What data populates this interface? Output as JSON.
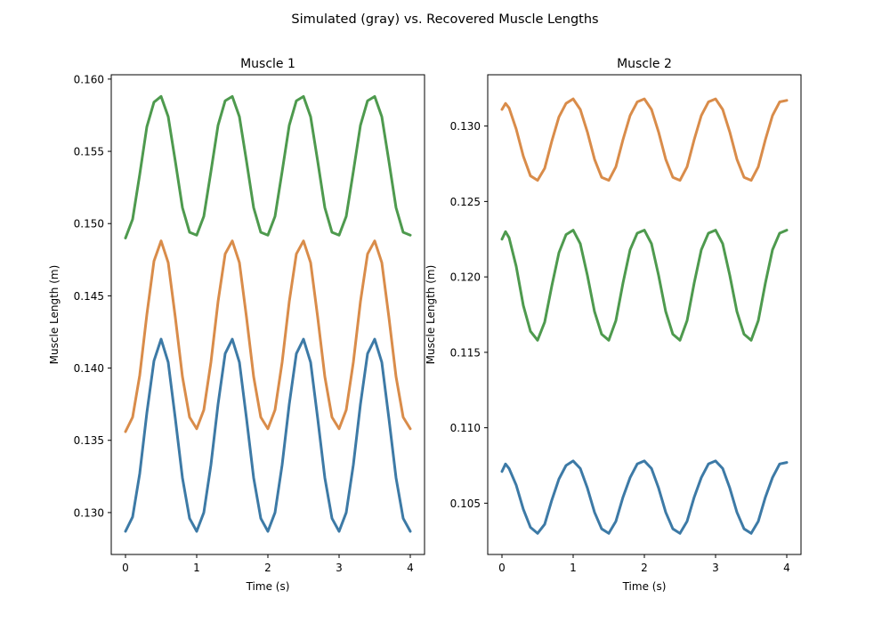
{
  "figure": {
    "suptitle": "Simulated (gray) vs. Recovered Muscle Lengths"
  },
  "chart_data": [
    {
      "type": "line",
      "title": "Muscle 1",
      "xlabel": "Time (s)",
      "ylabel": "Muscle Length (m)",
      "xlim": [
        -0.2,
        4.2
      ],
      "ylim": [
        0.1271,
        0.1603
      ],
      "xticks": [
        0,
        1,
        2,
        3,
        4
      ],
      "xtick_labels": [
        "0",
        "1",
        "2",
        "3",
        "4"
      ],
      "yticks": [
        0.13,
        0.135,
        0.14,
        0.145,
        0.15,
        0.155,
        0.16
      ],
      "ytick_labels": [
        "0.130",
        "0.135",
        "0.140",
        "0.145",
        "0.150",
        "0.155",
        "0.160"
      ],
      "grid": false,
      "series": [
        {
          "color": "#3d7aa6",
          "x": [
            0,
            0.1,
            0.2,
            0.3,
            0.4,
            0.5,
            0.6,
            0.7,
            0.8,
            0.9,
            1.0,
            1.1,
            1.2,
            1.3,
            1.4,
            1.5,
            1.6,
            1.7,
            1.8,
            1.9,
            2.0,
            2.1,
            2.2,
            2.3,
            2.4,
            2.5,
            2.6,
            2.7,
            2.8,
            2.9,
            3.0,
            3.1,
            3.2,
            3.3,
            3.4,
            3.5,
            3.6,
            3.7,
            3.8,
            3.9,
            4.0
          ],
          "y": [
            0.1287,
            0.1297,
            0.1327,
            0.1369,
            0.1405,
            0.142,
            0.1404,
            0.1365,
            0.1324,
            0.1296,
            0.1287,
            0.13,
            0.1333,
            0.1375,
            0.141,
            0.142,
            0.1404,
            0.1365,
            0.1324,
            0.1296,
            0.1287,
            0.13,
            0.1333,
            0.1375,
            0.141,
            0.142,
            0.1404,
            0.1365,
            0.1324,
            0.1296,
            0.1287,
            0.13,
            0.1333,
            0.1375,
            0.141,
            0.142,
            0.1404,
            0.1365,
            0.1324,
            0.1296,
            0.1287
          ]
        },
        {
          "color": "#d98c4a",
          "x": [
            0,
            0.1,
            0.2,
            0.3,
            0.4,
            0.5,
            0.6,
            0.7,
            0.8,
            0.9,
            1.0,
            1.1,
            1.2,
            1.3,
            1.4,
            1.5,
            1.6,
            1.7,
            1.8,
            1.9,
            2.0,
            2.1,
            2.2,
            2.3,
            2.4,
            2.5,
            2.6,
            2.7,
            2.8,
            2.9,
            3.0,
            3.1,
            3.2,
            3.3,
            3.4,
            3.5,
            3.6,
            3.7,
            3.8,
            3.9,
            4.0
          ],
          "y": [
            0.1356,
            0.1366,
            0.1395,
            0.1437,
            0.1474,
            0.1488,
            0.1473,
            0.1435,
            0.1394,
            0.1366,
            0.1358,
            0.1371,
            0.1404,
            0.1446,
            0.1479,
            0.1488,
            0.1473,
            0.1435,
            0.1394,
            0.1366,
            0.1358,
            0.1371,
            0.1404,
            0.1446,
            0.1479,
            0.1488,
            0.1473,
            0.1435,
            0.1394,
            0.1366,
            0.1358,
            0.1371,
            0.1404,
            0.1446,
            0.1479,
            0.1488,
            0.1473,
            0.1435,
            0.1394,
            0.1366,
            0.1358
          ]
        },
        {
          "color": "#4e9a4e",
          "x": [
            0,
            0.1,
            0.2,
            0.3,
            0.4,
            0.5,
            0.6,
            0.7,
            0.8,
            0.9,
            1.0,
            1.1,
            1.2,
            1.3,
            1.4,
            1.5,
            1.6,
            1.7,
            1.8,
            1.9,
            2.0,
            2.1,
            2.2,
            2.3,
            2.4,
            2.5,
            2.6,
            2.7,
            2.8,
            2.9,
            3.0,
            3.1,
            3.2,
            3.3,
            3.4,
            3.5,
            3.6,
            3.7,
            3.8,
            3.9,
            4.0
          ],
          "y": [
            0.149,
            0.1503,
            0.1534,
            0.1567,
            0.1584,
            0.1588,
            0.1574,
            0.1543,
            0.1511,
            0.1494,
            0.1492,
            0.1505,
            0.1536,
            0.1568,
            0.1585,
            0.1588,
            0.1574,
            0.1543,
            0.1511,
            0.1494,
            0.1492,
            0.1505,
            0.1536,
            0.1568,
            0.1585,
            0.1588,
            0.1574,
            0.1543,
            0.1511,
            0.1494,
            0.1492,
            0.1505,
            0.1536,
            0.1568,
            0.1585,
            0.1588,
            0.1574,
            0.1543,
            0.1511,
            0.1494,
            0.1492
          ]
        }
      ]
    },
    {
      "type": "line",
      "title": "Muscle 2",
      "xlabel": "Time (s)",
      "ylabel": "Muscle Length (m)",
      "xlim": [
        -0.2,
        4.2
      ],
      "ylim": [
        0.1016,
        0.1334
      ],
      "xticks": [
        0,
        1,
        2,
        3,
        4
      ],
      "xtick_labels": [
        "0",
        "1",
        "2",
        "3",
        "4"
      ],
      "yticks": [
        0.105,
        0.11,
        0.115,
        0.12,
        0.125,
        0.13
      ],
      "ytick_labels": [
        "0.105",
        "0.110",
        "0.115",
        "0.120",
        "0.125",
        "0.130"
      ],
      "grid": false,
      "series": [
        {
          "color": "#3d7aa6",
          "x": [
            0,
            0.05,
            0.1,
            0.2,
            0.3,
            0.4,
            0.5,
            0.6,
            0.7,
            0.8,
            0.9,
            1.0,
            1.1,
            1.2,
            1.3,
            1.4,
            1.5,
            1.6,
            1.7,
            1.8,
            1.9,
            2.0,
            2.1,
            2.2,
            2.3,
            2.4,
            2.5,
            2.6,
            2.7,
            2.8,
            2.9,
            3.0,
            3.1,
            3.2,
            3.3,
            3.4,
            3.5,
            3.6,
            3.7,
            3.8,
            3.9,
            4.0
          ],
          "y": [
            0.1071,
            0.1076,
            0.1073,
            0.1062,
            0.1046,
            0.1034,
            0.103,
            0.1036,
            0.1052,
            0.1066,
            0.1075,
            0.1078,
            0.1073,
            0.106,
            0.1044,
            0.1033,
            0.103,
            0.1038,
            0.1054,
            0.1067,
            0.1076,
            0.1078,
            0.1073,
            0.106,
            0.1044,
            0.1033,
            0.103,
            0.1038,
            0.1054,
            0.1067,
            0.1076,
            0.1078,
            0.1073,
            0.106,
            0.1044,
            0.1033,
            0.103,
            0.1038,
            0.1054,
            0.1067,
            0.1076,
            0.1077
          ]
        },
        {
          "color": "#d98c4a",
          "x": [
            0,
            0.05,
            0.1,
            0.2,
            0.3,
            0.4,
            0.5,
            0.6,
            0.7,
            0.8,
            0.9,
            1.0,
            1.1,
            1.2,
            1.3,
            1.4,
            1.5,
            1.6,
            1.7,
            1.8,
            1.9,
            2.0,
            2.1,
            2.2,
            2.3,
            2.4,
            2.5,
            2.6,
            2.7,
            2.8,
            2.9,
            3.0,
            3.1,
            3.2,
            3.3,
            3.4,
            3.5,
            3.6,
            3.7,
            3.8,
            3.9,
            4.0
          ],
          "y": [
            0.1311,
            0.1315,
            0.1312,
            0.1298,
            0.128,
            0.1267,
            0.1264,
            0.1272,
            0.129,
            0.1306,
            0.1315,
            0.1318,
            0.1311,
            0.1296,
            0.1278,
            0.1266,
            0.1264,
            0.1273,
            0.1291,
            0.1307,
            0.1316,
            0.1318,
            0.1311,
            0.1296,
            0.1278,
            0.1266,
            0.1264,
            0.1273,
            0.1291,
            0.1307,
            0.1316,
            0.1318,
            0.1311,
            0.1296,
            0.1278,
            0.1266,
            0.1264,
            0.1273,
            0.1291,
            0.1307,
            0.1316,
            0.1317
          ]
        },
        {
          "color": "#4e9a4e",
          "x": [
            0,
            0.05,
            0.1,
            0.2,
            0.3,
            0.4,
            0.5,
            0.6,
            0.7,
            0.8,
            0.9,
            1.0,
            1.1,
            1.2,
            1.3,
            1.4,
            1.5,
            1.6,
            1.7,
            1.8,
            1.9,
            2.0,
            2.1,
            2.2,
            2.3,
            2.4,
            2.5,
            2.6,
            2.7,
            2.8,
            2.9,
            3.0,
            3.1,
            3.2,
            3.3,
            3.4,
            3.5,
            3.6,
            3.7,
            3.8,
            3.9,
            4.0
          ],
          "y": [
            0.1225,
            0.123,
            0.1226,
            0.1207,
            0.1181,
            0.1164,
            0.1158,
            0.117,
            0.1194,
            0.1216,
            0.1228,
            0.1231,
            0.1222,
            0.1201,
            0.1177,
            0.1162,
            0.1158,
            0.1171,
            0.1196,
            0.1218,
            0.1229,
            0.1231,
            0.1222,
            0.1201,
            0.1177,
            0.1162,
            0.1158,
            0.1171,
            0.1196,
            0.1218,
            0.1229,
            0.1231,
            0.1222,
            0.1201,
            0.1177,
            0.1162,
            0.1158,
            0.1171,
            0.1196,
            0.1218,
            0.1229,
            0.1231
          ]
        }
      ]
    }
  ]
}
